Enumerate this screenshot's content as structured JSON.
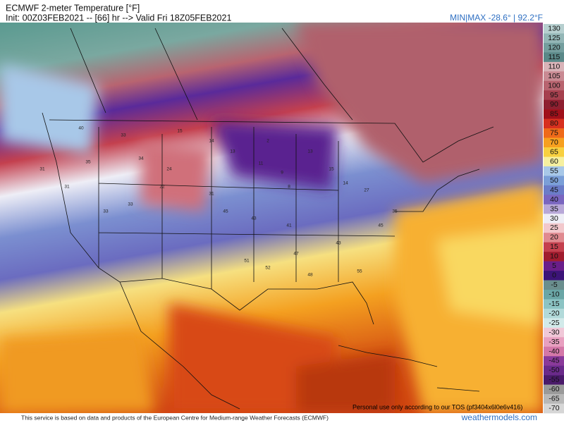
{
  "header": {
    "title": "ECMWF 2-meter Temperature [°F]",
    "init": "Init: 00Z03FEB2021 -- [66] hr --> Valid Fri 18Z05FEB2021",
    "minmax": "MIN|MAX -28.6° | 92.2°F"
  },
  "colorbar": {
    "labels": [
      130,
      125,
      120,
      115,
      110,
      105,
      100,
      95,
      90,
      85,
      80,
      75,
      70,
      65,
      60,
      55,
      50,
      45,
      40,
      35,
      30,
      25,
      20,
      15,
      10,
      5,
      0,
      -5,
      -10,
      -15,
      -20,
      -25,
      -30,
      -35,
      -40,
      -45,
      -50,
      -55,
      -60,
      -65,
      -70
    ],
    "colors": [
      "#b6cfcf",
      "#93b6b6",
      "#749e9e",
      "#5a8888",
      "#d9b3b8",
      "#c98a93",
      "#b8646f",
      "#a5404e",
      "#8e1f30",
      "#a0101a",
      "#d7301f",
      "#ef6a1a",
      "#f7a020",
      "#f8d040",
      "#f6f0a0",
      "#a8c8e8",
      "#7b9fd8",
      "#6b7cc8",
      "#7a66c0",
      "#b8a8d8",
      "#eeeef6",
      "#f2c8cc",
      "#e08a90",
      "#c4404e",
      "#a01c2e",
      "#6a1e8a",
      "#3c1478",
      "#6a8e8e",
      "#6aa6a6",
      "#8cc4c4",
      "#b2dada",
      "#d2eaea",
      "#f0c8d8",
      "#e8a0c0",
      "#d478a8",
      "#8a3a9a",
      "#6a2a8a",
      "#4a1a6a",
      "#9a9a9a",
      "#b8b8b8",
      "#d6d6d6"
    ]
  },
  "map": {
    "stations": [
      40,
      35,
      33,
      31,
      34,
      33,
      15,
      14,
      13,
      11,
      9,
      8,
      2,
      13,
      15,
      14,
      27,
      24,
      22,
      31,
      45,
      43,
      41,
      47,
      48,
      43,
      51,
      52,
      55,
      45,
      35,
      33,
      31
    ]
  },
  "footer": {
    "tos": "Personal use only according to our TOS (pf3404x6l0e6v416)",
    "credit": "This service is based on data and products of the European Centre for Medium-range Weather Forecasts (ECMWF)",
    "site": "weathermodels.com"
  }
}
